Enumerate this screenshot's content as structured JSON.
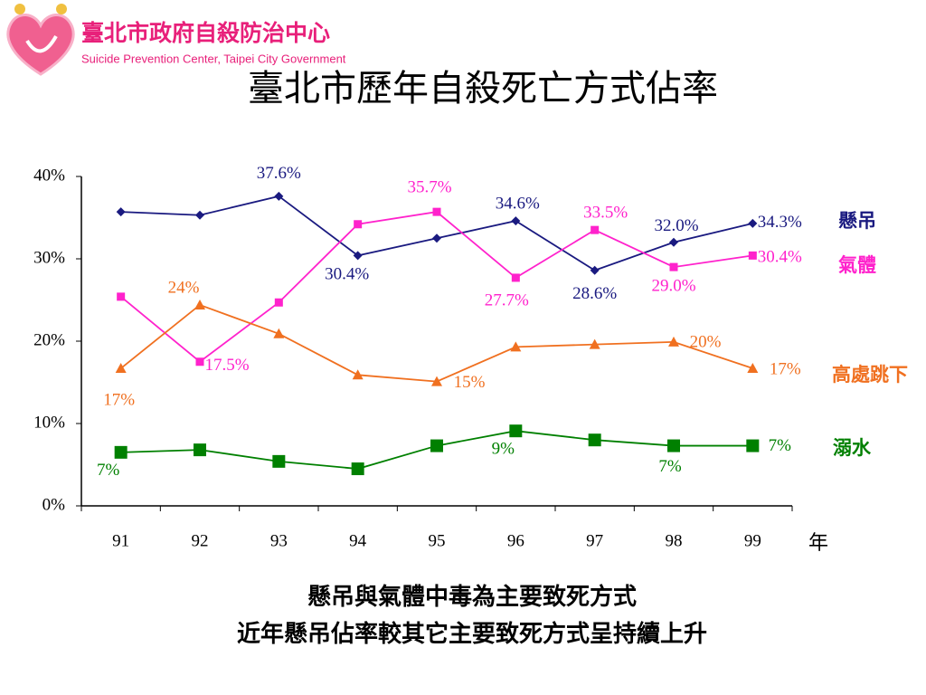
{
  "header": {
    "org_name": "臺北市政府自殺防治中心",
    "org_name_en": "Suicide Prevention Center, Taipei City Government"
  },
  "chart_data": {
    "type": "line",
    "title": "臺北市歷年自殺死亡方式佔率",
    "x_label": "年",
    "categories": [
      "91",
      "92",
      "93",
      "94",
      "95",
      "96",
      "97",
      "98",
      "99"
    ],
    "ylim": [
      0,
      40
    ],
    "yticks": [
      {
        "value": 0,
        "label": "0%"
      },
      {
        "value": 10,
        "label": "10%"
      },
      {
        "value": 20,
        "label": "20%"
      },
      {
        "value": 30,
        "label": "30%"
      },
      {
        "value": 40,
        "label": "40%"
      }
    ],
    "series": [
      {
        "name": "懸吊",
        "color": "#1a1a80",
        "marker": "diamond",
        "values": [
          35.7,
          35.3,
          37.6,
          30.4,
          32.5,
          34.6,
          28.6,
          32.0,
          34.3
        ],
        "value_labels": [
          null,
          null,
          "37.6%",
          "30.4%",
          null,
          "34.6%",
          "28.6%",
          "32.0%",
          "34.3%"
        ]
      },
      {
        "name": "氣體",
        "color": "#ff22cc",
        "marker": "square",
        "values": [
          25.4,
          17.5,
          24.7,
          34.2,
          35.7,
          27.7,
          33.5,
          29.0,
          30.4
        ],
        "value_labels": [
          null,
          "17.5%",
          null,
          null,
          "35.7%",
          "27.7%",
          "33.5%",
          "29.0%",
          "30.4%"
        ]
      },
      {
        "name": "高處跳下",
        "color": "#f07020",
        "marker": "triangle",
        "values": [
          16.7,
          24.4,
          20.9,
          15.9,
          15.1,
          19.3,
          19.6,
          19.9,
          16.7
        ],
        "value_labels": [
          "17%",
          "24%",
          null,
          null,
          "15%",
          null,
          null,
          "20%",
          "17%"
        ]
      },
      {
        "name": "溺水",
        "color": "#008000",
        "marker": "bigsquare",
        "values": [
          6.5,
          6.8,
          5.4,
          4.5,
          7.3,
          9.1,
          8.0,
          7.3,
          7.3
        ],
        "value_labels": [
          "7%",
          null,
          null,
          null,
          null,
          "9%",
          null,
          "7%",
          "7%"
        ]
      }
    ]
  },
  "footer": {
    "lines": [
      "懸吊與氣體中毒為主要致死方式",
      "近年懸吊佔率較其它主要致死方式呈持續上升"
    ]
  }
}
